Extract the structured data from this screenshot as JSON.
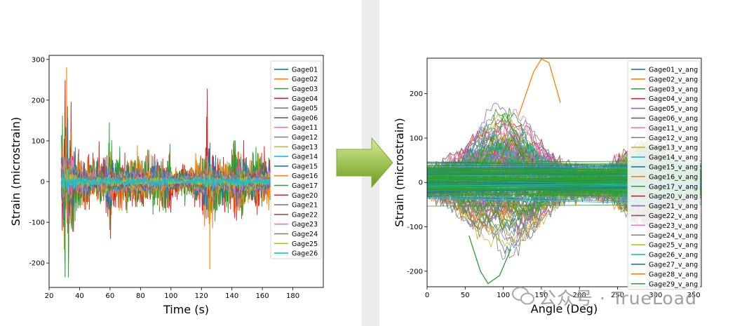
{
  "chart_data": [
    {
      "type": "line",
      "xlabel": "Time (s)",
      "ylabel": "Strain (microstrain)",
      "xlim": [
        20,
        200
      ],
      "ylim": [
        -260,
        310
      ],
      "x_ticks": [
        20,
        40,
        60,
        80,
        100,
        120,
        140,
        160,
        180
      ],
      "y_ticks": [
        -200,
        -100,
        0,
        100,
        200,
        300
      ],
      "legend_position": "top-right",
      "grid": false,
      "signal_x_range": [
        28,
        165
      ],
      "approx_extremes": {
        "max": 280,
        "min": -235
      },
      "series": [
        {
          "name": "Gage01",
          "color": "#1f77b4",
          "amp": 45
        },
        {
          "name": "Gage02",
          "color": "#ff7f0e",
          "amp": 60
        },
        {
          "name": "Gage03",
          "color": "#2ca02c",
          "amp": 70
        },
        {
          "name": "Gage04",
          "color": "#d62728",
          "amp": 80
        },
        {
          "name": "Gage05",
          "color": "#9467bd",
          "amp": 30
        },
        {
          "name": "Gage06",
          "color": "#8c564b",
          "amp": 25
        },
        {
          "name": "Gage11",
          "color": "#e377c2",
          "amp": 25
        },
        {
          "name": "Gage12",
          "color": "#7f7f7f",
          "amp": 22
        },
        {
          "name": "Gage13",
          "color": "#bcbd22",
          "amp": 22
        },
        {
          "name": "Gage14",
          "color": "#17becf",
          "amp": 18
        },
        {
          "name": "Gage15",
          "color": "#1f77b4",
          "amp": 18
        },
        {
          "name": "Gage16",
          "color": "#ff7f0e",
          "amp": 16
        },
        {
          "name": "Gage17",
          "color": "#2ca02c",
          "amp": 16
        },
        {
          "name": "Gage20",
          "color": "#d62728",
          "amp": 15
        },
        {
          "name": "Gage21",
          "color": "#9467bd",
          "amp": 14
        },
        {
          "name": "Gage22",
          "color": "#8c564b",
          "amp": 13
        },
        {
          "name": "Gage23",
          "color": "#e377c2",
          "amp": 13
        },
        {
          "name": "Gage24",
          "color": "#7f7f7f",
          "amp": 12
        },
        {
          "name": "Gage25",
          "color": "#bcbd22",
          "amp": 12
        },
        {
          "name": "Gage26",
          "color": "#17becf",
          "amp": 12
        }
      ]
    },
    {
      "type": "line",
      "xlabel": "Angle (Deg)",
      "ylabel": "Strain (microstrain)",
      "xlim": [
        0,
        360
      ],
      "ylim": [
        -235,
        280
      ],
      "x_ticks": [
        0,
        50,
        100,
        150,
        200,
        250,
        300,
        350
      ],
      "y_ticks": [
        -200,
        -100,
        0,
        100,
        200
      ],
      "legend_position": "top-right",
      "grid": false,
      "approx_extremes": {
        "max": 278,
        "min": -230
      },
      "series": [
        {
          "name": "Gage01_v_ang",
          "color": "#1f77b4"
        },
        {
          "name": "Gage02_v_ang",
          "color": "#ff7f0e"
        },
        {
          "name": "Gage03_v_ang",
          "color": "#2ca02c"
        },
        {
          "name": "Gage04_v_ang",
          "color": "#d62728"
        },
        {
          "name": "Gage05_v_ang",
          "color": "#9467bd"
        },
        {
          "name": "Gage06_v_ang",
          "color": "#8c564b"
        },
        {
          "name": "Gage11_v_ang",
          "color": "#e377c2"
        },
        {
          "name": "Gage12_v_ang",
          "color": "#7f7f7f"
        },
        {
          "name": "Gage13_v_ang",
          "color": "#bcbd22"
        },
        {
          "name": "Gage14_v_ang",
          "color": "#17becf"
        },
        {
          "name": "Gage15_v_ang",
          "color": "#1f77b4"
        },
        {
          "name": "Gage16_v_ang",
          "color": "#ff7f0e"
        },
        {
          "name": "Gage17_v_ang",
          "color": "#2ca02c"
        },
        {
          "name": "Gage20_v_ang",
          "color": "#d62728"
        },
        {
          "name": "Gage21_v_ang",
          "color": "#9467bd"
        },
        {
          "name": "Gage22_v_ang",
          "color": "#8c564b"
        },
        {
          "name": "Gage23_v_ang",
          "color": "#e377c2"
        },
        {
          "name": "Gage24_v_ang",
          "color": "#7f7f7f"
        },
        {
          "name": "Gage25_v_ang",
          "color": "#bcbd22"
        },
        {
          "name": "Gage26_v_ang",
          "color": "#17becf"
        },
        {
          "name": "Gage27_v_ang",
          "color": "#1f77b4"
        },
        {
          "name": "Gage28_v_ang",
          "color": "#ff7f0e"
        },
        {
          "name": "Gage29_v_ang",
          "color": "#2ca02c"
        }
      ]
    }
  ],
  "arrow": {
    "color_top": "#c6e07a",
    "color_bottom": "#6f9a22"
  },
  "watermark": {
    "text": "公众号 · TrueLoad",
    "color": "#9e9e9e"
  }
}
